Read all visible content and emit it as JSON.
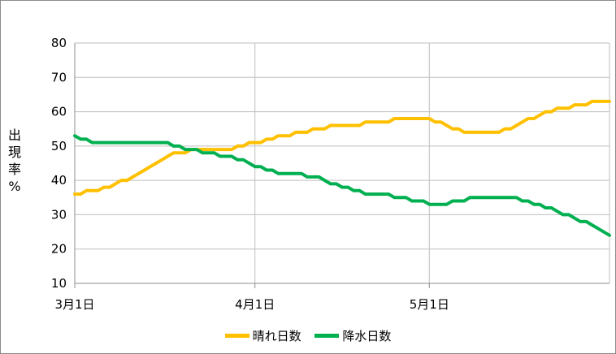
{
  "chart_data": {
    "type": "line",
    "ylabel": "出現率 %",
    "ylim": [
      10,
      80
    ],
    "y_ticks": [
      "10",
      "20",
      "30",
      "40",
      "50",
      "60",
      "70",
      "80"
    ],
    "x_tick_labels": [
      "3月1日",
      "4月1日",
      "5月1日"
    ],
    "x_tick_positions": [
      0,
      31,
      61
    ],
    "x_range": [
      0,
      92
    ],
    "grid": true,
    "legend_position": "bottom",
    "series": [
      {
        "name": "晴れ日数",
        "color": "#FFC000",
        "x": [
          0,
          1,
          2,
          3,
          4,
          5,
          6,
          7,
          8,
          9,
          10,
          11,
          12,
          13,
          14,
          15,
          16,
          17,
          18,
          19,
          20,
          21,
          22,
          23,
          24,
          25,
          26,
          27,
          28,
          29,
          30,
          31,
          32,
          33,
          34,
          35,
          36,
          37,
          38,
          39,
          40,
          41,
          42,
          43,
          44,
          45,
          46,
          47,
          48,
          49,
          50,
          51,
          52,
          53,
          54,
          55,
          56,
          57,
          58,
          59,
          60,
          61,
          62,
          63,
          64,
          65,
          66,
          67,
          68,
          69,
          70,
          71,
          72,
          73,
          74,
          75,
          76,
          77,
          78,
          79,
          80,
          81,
          82,
          83,
          84,
          85,
          86,
          87,
          88,
          89,
          90,
          91,
          92
        ],
        "values": [
          36,
          36,
          37,
          37,
          37,
          38,
          38,
          39,
          40,
          40,
          41,
          42,
          43,
          44,
          45,
          46,
          47,
          48,
          48,
          48,
          49,
          49,
          49,
          49,
          49,
          49,
          49,
          49,
          50,
          50,
          51,
          51,
          51,
          52,
          52,
          53,
          53,
          53,
          54,
          54,
          54,
          55,
          55,
          55,
          56,
          56,
          56,
          56,
          56,
          56,
          57,
          57,
          57,
          57,
          57,
          58,
          58,
          58,
          58,
          58,
          58,
          58,
          57,
          57,
          56,
          55,
          55,
          54,
          54,
          54,
          54,
          54,
          54,
          54,
          55,
          55,
          56,
          57,
          58,
          58,
          59,
          60,
          60,
          61,
          61,
          61,
          62,
          62,
          62,
          63,
          63,
          63,
          63
        ]
      },
      {
        "name": "降水日数",
        "color": "#00B050",
        "x": [
          0,
          1,
          2,
          3,
          4,
          5,
          6,
          7,
          8,
          9,
          10,
          11,
          12,
          13,
          14,
          15,
          16,
          17,
          18,
          19,
          20,
          21,
          22,
          23,
          24,
          25,
          26,
          27,
          28,
          29,
          30,
          31,
          32,
          33,
          34,
          35,
          36,
          37,
          38,
          39,
          40,
          41,
          42,
          43,
          44,
          45,
          46,
          47,
          48,
          49,
          50,
          51,
          52,
          53,
          54,
          55,
          56,
          57,
          58,
          59,
          60,
          61,
          62,
          63,
          64,
          65,
          66,
          67,
          68,
          69,
          70,
          71,
          72,
          73,
          74,
          75,
          76,
          77,
          78,
          79,
          80,
          81,
          82,
          83,
          84,
          85,
          86,
          87,
          88,
          89,
          90,
          91,
          92
        ],
        "values": [
          53,
          52,
          52,
          51,
          51,
          51,
          51,
          51,
          51,
          51,
          51,
          51,
          51,
          51,
          51,
          51,
          51,
          50,
          50,
          49,
          49,
          49,
          48,
          48,
          48,
          47,
          47,
          47,
          46,
          46,
          45,
          44,
          44,
          43,
          43,
          42,
          42,
          42,
          42,
          42,
          41,
          41,
          41,
          40,
          39,
          39,
          38,
          38,
          37,
          37,
          36,
          36,
          36,
          36,
          36,
          35,
          35,
          35,
          34,
          34,
          34,
          33,
          33,
          33,
          33,
          34,
          34,
          34,
          35,
          35,
          35,
          35,
          35,
          35,
          35,
          35,
          35,
          34,
          34,
          33,
          33,
          32,
          32,
          31,
          30,
          30,
          29,
          28,
          28,
          27,
          26,
          25,
          24
        ]
      }
    ]
  }
}
